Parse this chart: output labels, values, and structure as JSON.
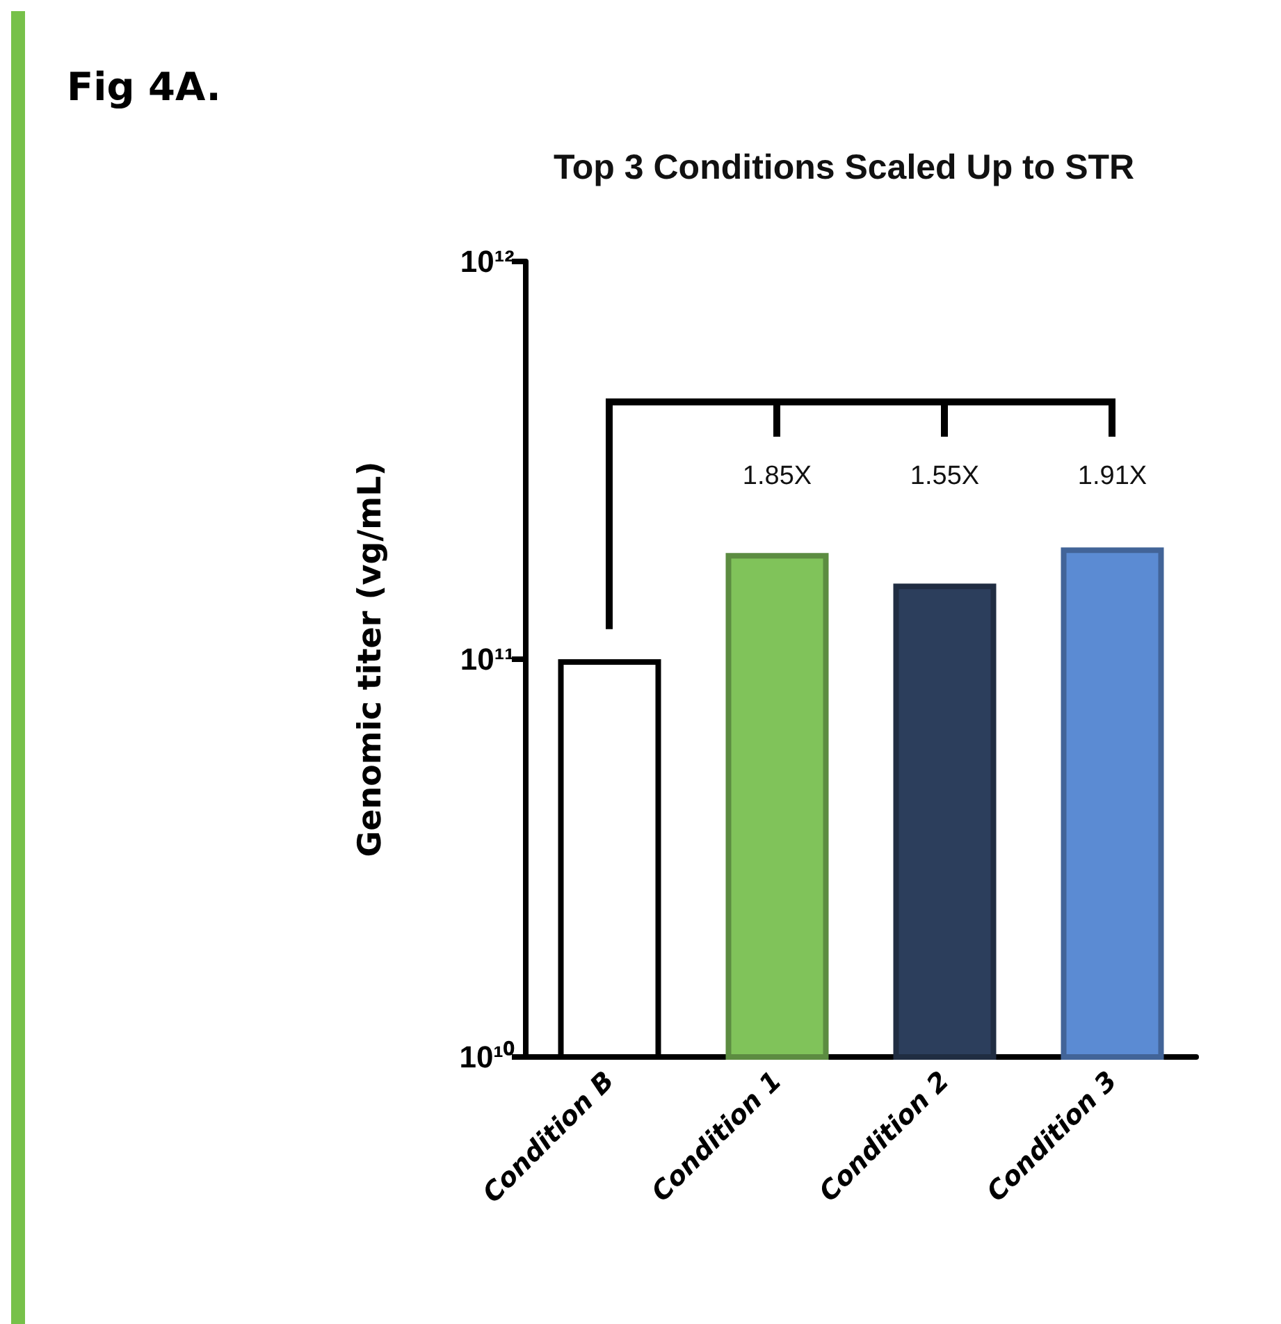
{
  "chart_data": {
    "type": "bar",
    "title": "Top 3 Conditions Scaled Up to STR",
    "ylabel": "Genomic titer (vg/mL)",
    "annotations": [
      "Fig 4A.",
      "1.85X",
      "1.55X",
      "1.91X"
    ],
    "categories": [
      "Condition B",
      "Condition 1",
      "Condition 2",
      "Condition 3"
    ],
    "values": [
      100000000000.0,
      185000000000.0,
      155000000000.0,
      191000000000.0
    ],
    "colors": [
      "#ffffff",
      "#80c35a",
      "#2c3e5c",
      "#5b8bd3"
    ],
    "log": true,
    "ylim": [
      10000000000.0,
      1000000000000.0
    ],
    "yticks": [
      {
        "value": 10000000000.0,
        "label": "10¹⁰"
      },
      {
        "value": 100000000000.0,
        "label": "10¹¹"
      },
      {
        "value": 1000000000000.0,
        "label": "10¹²"
      }
    ],
    "grid": false
  }
}
